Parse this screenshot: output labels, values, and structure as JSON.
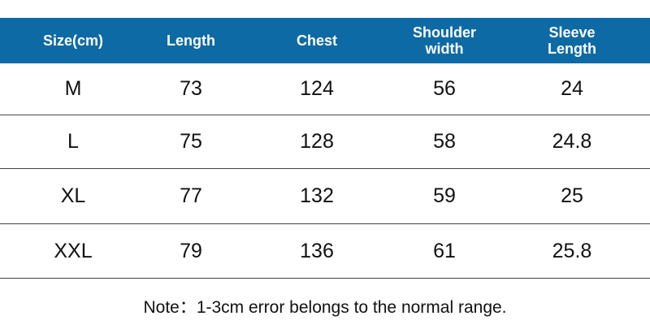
{
  "table": {
    "header": [
      "Size(cm)",
      "Length",
      "Chest",
      "Shoulder width",
      "Sleeve Length"
    ],
    "rows": [
      [
        "M",
        73,
        124,
        56,
        24
      ],
      [
        "L",
        75,
        128,
        58,
        24.8
      ],
      [
        "XL",
        77,
        132,
        59,
        25
      ],
      [
        "XXL",
        79,
        136,
        61,
        25.8
      ]
    ]
  },
  "note": "Note：1-3cm error belongs to the normal range."
}
